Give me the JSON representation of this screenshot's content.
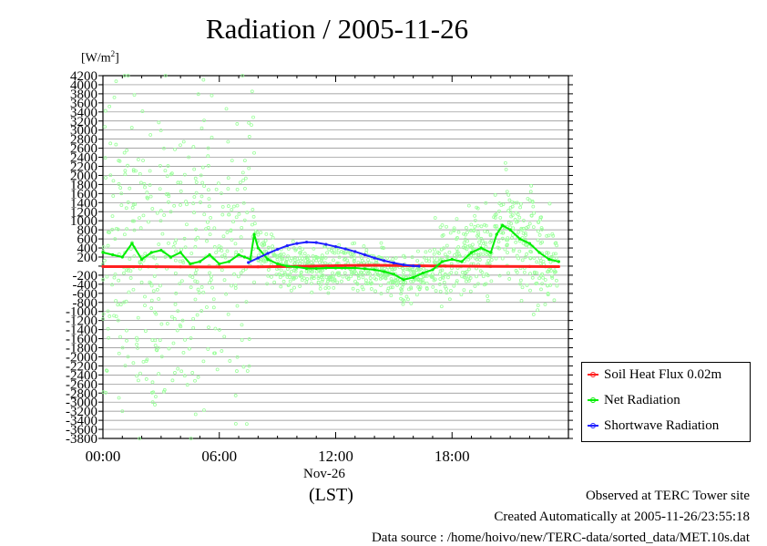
{
  "title": "Radiation / 2005-11-26",
  "units": {
    "base": "[W/m",
    "sup": "2",
    "end": "]"
  },
  "chart_data": {
    "type": "line",
    "x_unit": "hours (LST)",
    "xlim": [
      0,
      24
    ],
    "ylim": [
      -3800,
      4200
    ],
    "y_ticks": [
      4200,
      4000,
      3800,
      3600,
      3400,
      3200,
      3000,
      2800,
      2600,
      2400,
      2200,
      2000,
      1800,
      1600,
      1400,
      1200,
      1000,
      800,
      600,
      400,
      200,
      0,
      -200,
      -400,
      -600,
      -800,
      -1000,
      -1200,
      -1400,
      -1600,
      -1800,
      -2000,
      -2200,
      -2400,
      -2600,
      -2800,
      -3000,
      -3200,
      -3400,
      -3600,
      -3800
    ],
    "y_tick_labels": [
      "4200",
      "4000",
      "3800",
      "3600",
      "3400",
      "3200",
      "3000",
      "2800",
      "2600",
      "2400",
      "2200",
      "2000",
      "1800",
      "1600",
      "1400",
      "1200",
      "1000",
      "800",
      "600",
      "400",
      "200",
      "",
      "-200",
      "-400",
      "-600",
      "-800",
      "-1000",
      "-1200",
      "-1400",
      "-1600",
      "-1800",
      "-2000",
      "-2200",
      "-2400",
      "-2600",
      "-2800",
      "-3000",
      "-3200",
      "-3400",
      "-3600",
      "-3800"
    ],
    "x_ticks": [
      0,
      6,
      12,
      18
    ],
    "x_tick_labels": [
      "00:00",
      "06:00",
      "12:00",
      "18:00"
    ],
    "grid": "horizontal",
    "legend_position": "bottom-right",
    "series": [
      {
        "name": "Soil Heat Flux 0.02m",
        "color": "#ff2020",
        "x": [
          0,
          2,
          4,
          6,
          8,
          10,
          12,
          14,
          16,
          18,
          20,
          22,
          23.5
        ],
        "y": [
          -10,
          -12,
          -15,
          -18,
          -15,
          -5,
          10,
          20,
          10,
          0,
          -5,
          -8,
          -10
        ]
      },
      {
        "name": "Net Radiation",
        "color": "#00ee00",
        "x": [
          0,
          0.5,
          1,
          1.5,
          2,
          2.5,
          3,
          3.5,
          4,
          4.5,
          5,
          5.5,
          6,
          6.5,
          7,
          7.3,
          7.6,
          7.8,
          8,
          8.5,
          9,
          9.5,
          10,
          10.5,
          11,
          11.5,
          12,
          12.5,
          13,
          13.5,
          14,
          14.5,
          15,
          15.5,
          16,
          16.5,
          17,
          17.5,
          18,
          18.5,
          19,
          19.5,
          20,
          20.3,
          20.6,
          21,
          21.5,
          22,
          22.5,
          23,
          23.5
        ],
        "y": [
          300,
          250,
          200,
          500,
          150,
          300,
          350,
          200,
          300,
          50,
          100,
          250,
          50,
          100,
          250,
          200,
          150,
          700,
          400,
          150,
          50,
          0,
          -20,
          -50,
          -50,
          -40,
          -40,
          -40,
          -40,
          -60,
          -80,
          -120,
          -180,
          -300,
          -250,
          -150,
          -80,
          100,
          150,
          100,
          300,
          400,
          300,
          700,
          900,
          800,
          600,
          500,
          300,
          150,
          100
        ]
      },
      {
        "name": "Shortwave Radiation",
        "color": "#2020ff",
        "x": [
          7.5,
          8,
          8.5,
          9,
          9.5,
          10,
          10.5,
          11,
          11.5,
          12,
          12.5,
          13,
          13.5,
          14,
          14.5,
          15,
          15.5,
          16,
          16.3
        ],
        "y": [
          80,
          180,
          280,
          370,
          450,
          500,
          530,
          520,
          480,
          430,
          380,
          320,
          250,
          180,
          120,
          70,
          30,
          5,
          0
        ]
      }
    ]
  },
  "x_date_label": "Nov-26",
  "x_tz_label": "(LST)",
  "footer": {
    "line1": "Observed at TERC Tower site",
    "line2": "Created Automatically at 2005-11-26/23:55:18",
    "line3": "Data source : /home/hoivo/new/TERC-data/sorted_data/MET.10s.dat"
  }
}
